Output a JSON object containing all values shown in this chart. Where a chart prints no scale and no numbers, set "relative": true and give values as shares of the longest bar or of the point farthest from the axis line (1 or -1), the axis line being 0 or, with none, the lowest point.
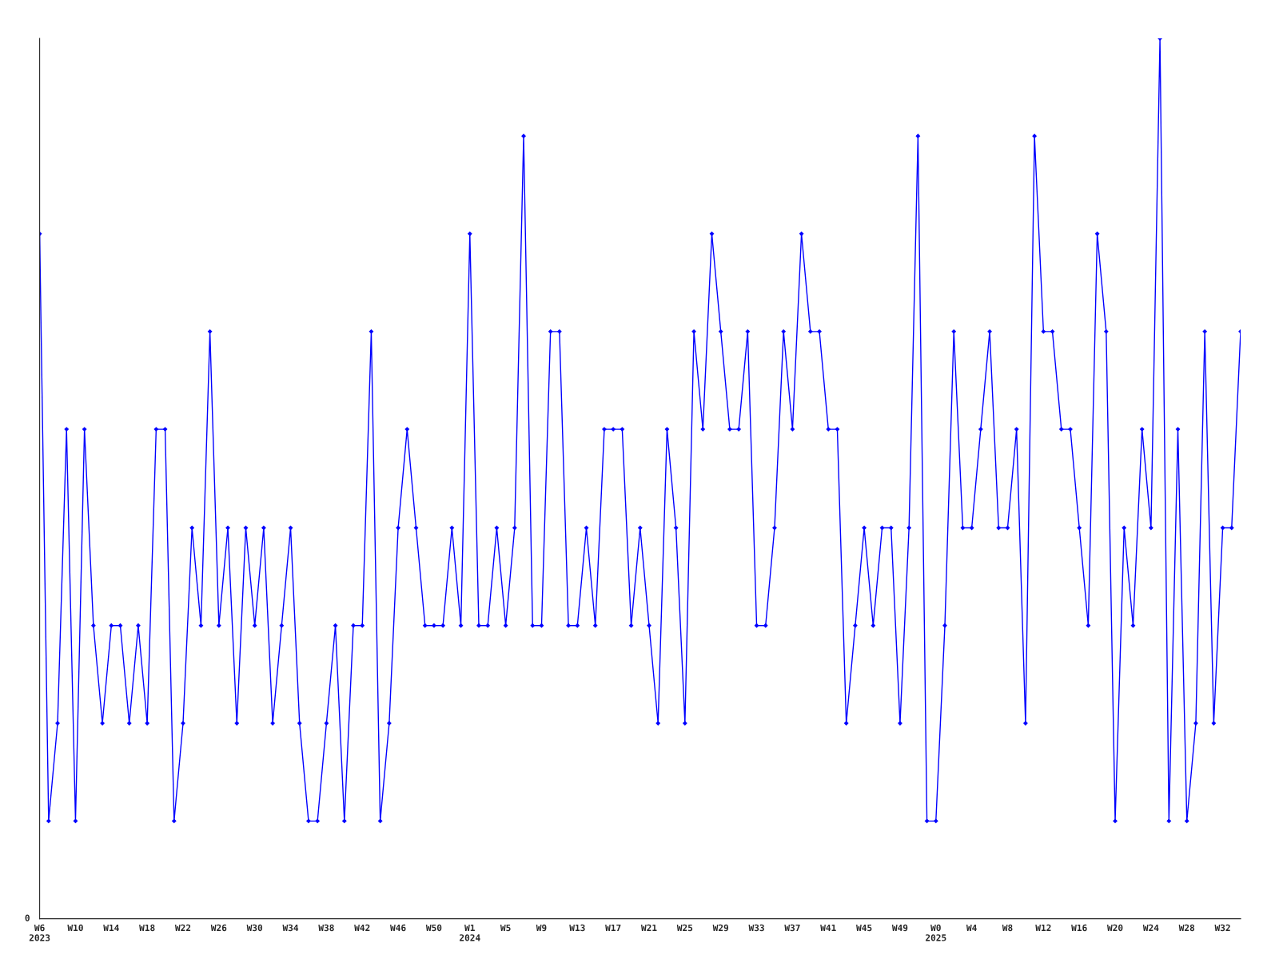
{
  "chart_data": {
    "type": "line",
    "relative": true,
    "marker": "diamond",
    "line_style": "solid",
    "grid": false,
    "legend": false,
    "annotations": [
      "0"
    ],
    "categories": [
      "W6\n2023",
      null,
      null,
      null,
      "W10",
      null,
      null,
      null,
      "W14",
      null,
      null,
      null,
      "W18",
      null,
      null,
      null,
      "W22",
      null,
      null,
      null,
      "W26",
      null,
      null,
      null,
      "W30",
      null,
      null,
      null,
      "W34",
      null,
      null,
      null,
      "W38",
      null,
      null,
      null,
      "W42",
      null,
      null,
      null,
      "W46",
      null,
      null,
      null,
      "W50",
      null,
      null,
      null,
      "W1\n2024",
      null,
      null,
      null,
      "W5",
      null,
      null,
      null,
      "W9",
      null,
      null,
      null,
      "W13",
      null,
      null,
      null,
      "W17",
      null,
      null,
      null,
      "W21",
      null,
      null,
      null,
      "W25",
      null,
      null,
      null,
      "W29",
      null,
      null,
      null,
      "W33",
      null,
      null,
      null,
      "W37",
      null,
      null,
      null,
      "W41",
      null,
      null,
      null,
      "W45",
      null,
      null,
      null,
      "W49",
      null,
      null,
      null,
      "W0\n2025",
      null,
      null,
      null,
      "W4",
      null,
      null,
      null,
      "W8",
      null,
      null,
      null,
      "W12",
      null,
      null,
      null,
      "W16",
      null,
      null,
      null,
      "W20",
      null,
      null,
      null,
      "W24",
      null,
      null,
      null,
      "W28",
      null,
      null,
      null,
      "W32",
      null,
      null
    ],
    "series": [
      {
        "color": "#0000ff",
        "values": [
          0.778,
          0.111,
          0.222,
          0.556,
          0.111,
          0.556,
          0.333,
          0.222,
          0.333,
          0.333,
          0.222,
          0.333,
          0.222,
          0.556,
          0.556,
          0.111,
          0.222,
          0.444,
          0.333,
          0.667,
          0.333,
          0.444,
          0.222,
          0.444,
          0.333,
          0.444,
          0.222,
          0.333,
          0.444,
          0.222,
          0.111,
          0.111,
          0.222,
          0.333,
          0.111,
          0.333,
          0.333,
          0.667,
          0.111,
          0.222,
          0.444,
          0.556,
          0.444,
          0.333,
          0.333,
          0.333,
          0.444,
          0.333,
          0.778,
          0.333,
          0.333,
          0.444,
          0.333,
          0.444,
          0.889,
          0.333,
          0.333,
          0.667,
          0.667,
          0.333,
          0.333,
          0.444,
          0.333,
          0.556,
          0.556,
          0.556,
          0.333,
          0.444,
          0.333,
          0.222,
          0.556,
          0.444,
          0.222,
          0.667,
          0.556,
          0.778,
          0.667,
          0.556,
          0.556,
          0.667,
          0.333,
          0.333,
          0.444,
          0.667,
          0.556,
          0.778,
          0.667,
          0.667,
          0.556,
          0.556,
          0.222,
          0.333,
          0.444,
          0.333,
          0.444,
          0.444,
          0.222,
          0.444,
          0.889,
          0.111,
          0.111,
          0.333,
          0.667,
          0.444,
          0.444,
          0.556,
          0.667,
          0.444,
          0.444,
          0.556,
          0.222,
          0.889,
          0.667,
          0.667,
          0.556,
          0.556,
          0.444,
          0.333,
          0.778,
          0.667,
          0.111,
          0.444,
          0.333,
          0.556,
          0.444,
          1,
          0.111,
          0.556,
          0.111,
          0.222,
          0.667,
          0.222,
          0.444,
          0.444,
          0.667
        ]
      }
    ]
  }
}
